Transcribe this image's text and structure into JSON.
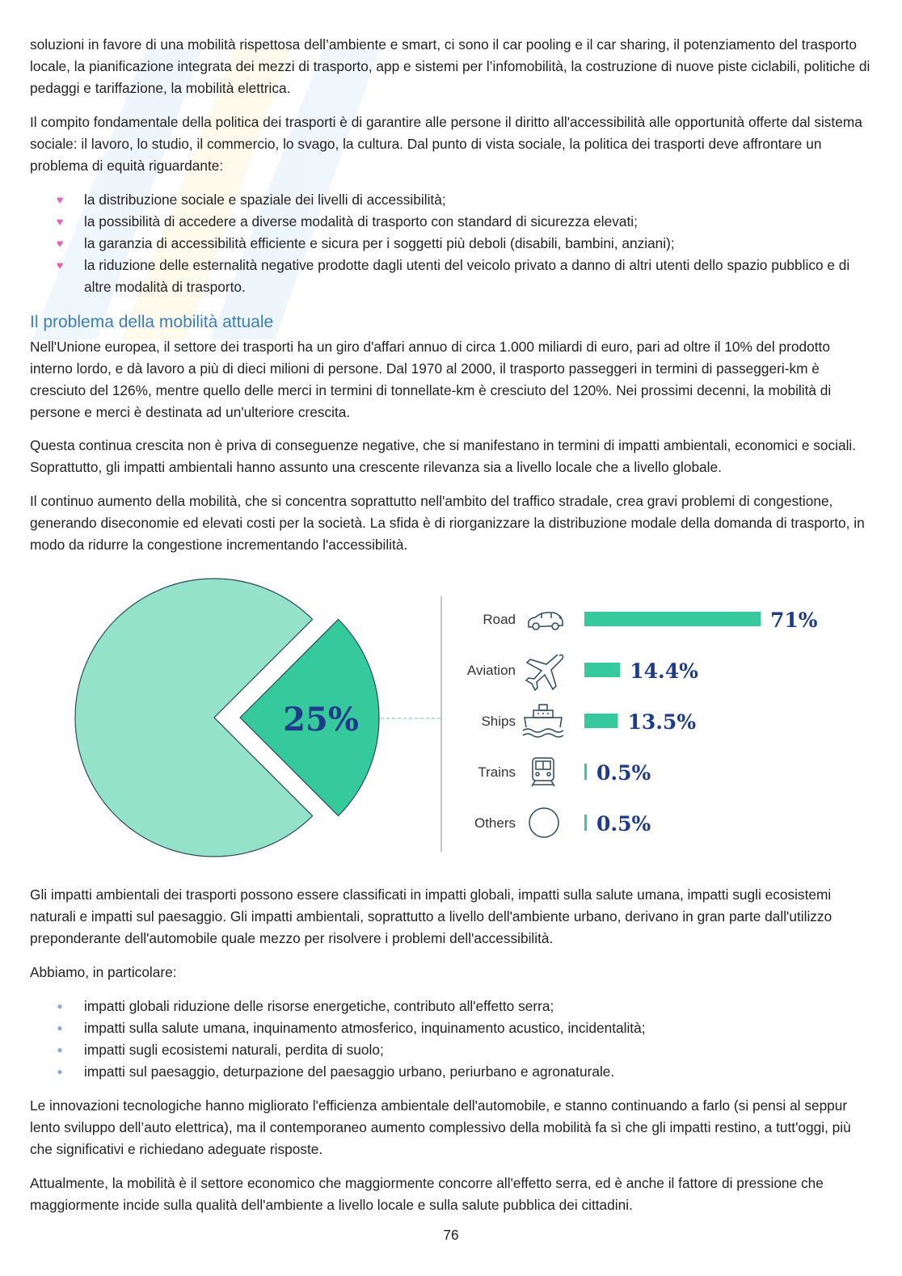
{
  "paragraphs_top": {
    "p1": "soluzioni in favore di una mobilità rispettosa dell’ambiente e smart, ci sono il car pooling e il car sharing, il potenziamento del trasporto locale, la pianificazione integrata dei mezzi di trasporto, app e sistemi per l’infomobilità, la costruzione di nuove piste ciclabili, politiche di pedaggi e tariffazione, la mobilità elettrica.",
    "p2": "Il compito fondamentale della politica dei trasporti è di garantire alle persone il diritto all'accessibilità alle opportunità offerte dal sistema sociale: il lavoro, lo studio, il commercio, lo svago, la cultura. Dal punto di vista sociale, la politica dei trasporti deve affrontare un problema di equità riguardante:"
  },
  "bullets_equity": [
    "la distribuzione sociale e spaziale dei livelli di accessibilità;",
    "la possibilità di accedere a diverse modalità di trasporto con standard di sicurezza elevati;",
    "la garanzia di accessibilità efficiente e sicura per i soggetti più deboli (disabili, bambini, anziani);",
    "la riduzione delle esternalità negative prodotte dagli utenti del veicolo privato a danno di altri utenti dello spazio pubblico e di altre modalità di trasporto."
  ],
  "section": {
    "heading": "Il problema della mobilità attuale",
    "p1": "Nell'Unione europea, il settore dei trasporti ha un giro d'affari annuo di circa 1.000 miliardi di euro, pari ad oltre il 10% del prodotto interno lordo, e dà lavoro a più di dieci milioni di persone. Dal 1970 al 2000, il trasporto passeggeri in termini di passeggeri-km è cresciuto del 126%, mentre quello delle merci in termini di tonnellate-km è cresciuto del 120%. Nei prossimi decenni, la mobilità di persone e merci è destinata ad un'ulteriore crescita.",
    "p2": "Questa continua crescita non è priva di conseguenze negative, che si manifestano in termini di impatti ambientali, economici e sociali. Soprattutto, gli impatti ambientali hanno assunto una crescente rilevanza sia a livello locale che a livello globale.",
    "p3": "Il continuo aumento della mobilità, che si concentra soprattutto nell'ambito del traffico stradale, crea gravi problemi di congestione, generando diseconomie ed elevati costi per la società. La sfida è di riorganizzare la distribuzione modale della domanda di trasporto, in modo da ridurre la congestione incrementando l'accessibilità."
  },
  "chart_data": {
    "type": "pie",
    "pie": {
      "highlight_value": 25,
      "highlight_label": "25%",
      "rest_value": 75
    },
    "breakdown": {
      "type": "bar",
      "categories": [
        "Road",
        "Aviation",
        "Ships",
        "Trains",
        "Others"
      ],
      "values": [
        71,
        14.4,
        13.5,
        0.5,
        0.5
      ],
      "value_labels": [
        "71%",
        "14.4%",
        "13.5%",
        "0.5%",
        "0.5%"
      ],
      "icons": [
        "car-icon",
        "airplane-icon",
        "ship-icon",
        "train-icon",
        "circle-icon"
      ]
    },
    "colors": {
      "pie_rest": "#94e3c9",
      "highlight": "#35c99b",
      "outline": "#2c4a5a",
      "value_text": "#1e3a8a"
    }
  },
  "paragraphs_bottom": {
    "p1": "Gli impatti ambientali dei trasporti possono essere classificati in impatti globali, impatti sulla salute umana, impatti sugli ecosistemi naturali e impatti sul paesaggio. Gli impatti ambientali, soprattutto a livello dell'ambiente urbano, derivano in gran parte dall'utilizzo preponderante dell'automobile quale mezzo per risolvere i problemi dell'accessibilità.",
    "p2": "Abbiamo, in particolare:",
    "p3": "Le innovazioni tecnologiche hanno migliorato l'efficienza ambientale dell'automobile, e stanno continuando a farlo (si pensi al seppur lento sviluppo dell’auto elettrica), ma il contemporaneo aumento complessivo della mobilità fa sì che gli impatti restino, a tutt'oggi, più che significativi e richiedano adeguate risposte.",
    "p4": "Attualmente, la mobilità è il settore economico che maggiormente concorre all'effetto serra, ed è anche il fattore di pressione che maggiormente incide sulla qualità dell'ambiente a livello locale e sulla salute pubblica dei cittadini."
  },
  "bullets_impacts": [
    "impatti globali riduzione delle risorse energetiche, contributo all'effetto serra;",
    "impatti sulla salute umana, inquinamento atmosferico, inquinamento acustico, incidentalità;",
    "impatti sugli ecosistemi naturali, perdita di suolo;",
    "impatti sul paesaggio, deturpazione del paesaggio urbano, periurbano e agronaturale."
  ],
  "footer": {
    "page_number": "76"
  },
  "markers": {
    "heart": "♥",
    "dot": "●"
  }
}
